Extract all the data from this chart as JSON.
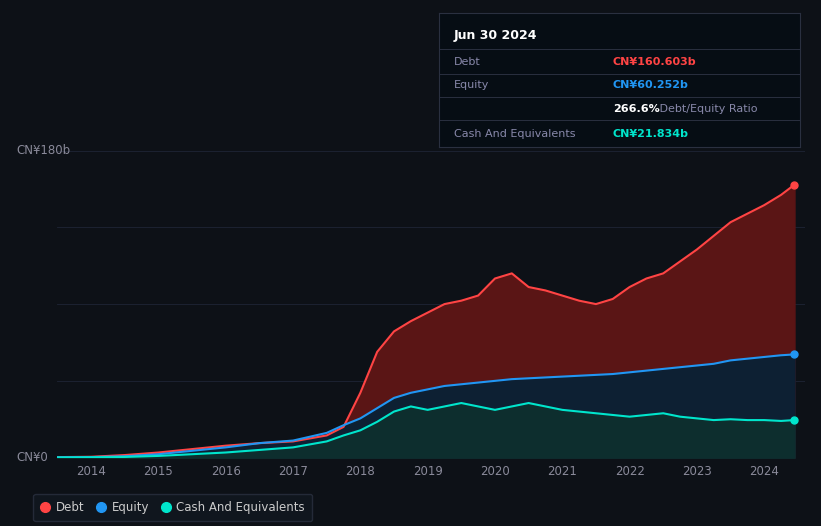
{
  "background_color": "#0d1117",
  "plot_bg_color": "#0d1117",
  "title": "Jun 30 2024",
  "ylabel_180": "CN¥180b",
  "ylabel_0": "CN¥0",
  "x_ticks": [
    2014,
    2015,
    2016,
    2017,
    2018,
    2019,
    2020,
    2021,
    2022,
    2023,
    2024
  ],
  "debt_color": "#ff4444",
  "equity_color": "#2196f3",
  "cash_color": "#00e5cc",
  "debt_fill_color": "#5a1515",
  "equity_fill_color": "#0d2033",
  "cash_fill_color": "#0d2e2e",
  "grid_color": "#1e2535",
  "debt_label": "Debt",
  "equity_label": "Equity",
  "cash_label": "Cash And Equivalents",
  "debt_value": "CN¥160.603b",
  "equity_value": "CN¥60.252b",
  "ratio_value": "266.6%",
  "cash_value": "CN¥21.834b",
  "years": [
    2013.5,
    2014.0,
    2014.5,
    2015.0,
    2015.5,
    2016.0,
    2016.5,
    2017.0,
    2017.5,
    2017.75,
    2018.0,
    2018.25,
    2018.5,
    2018.75,
    2019.0,
    2019.25,
    2019.5,
    2019.75,
    2020.0,
    2020.25,
    2020.5,
    2020.75,
    2021.0,
    2021.25,
    2021.5,
    2021.75,
    2022.0,
    2022.25,
    2022.5,
    2022.75,
    2023.0,
    2023.25,
    2023.5,
    2023.75,
    2024.0,
    2024.25,
    2024.45
  ],
  "debt": [
    0.3,
    0.5,
    1.5,
    3.0,
    5.0,
    7.0,
    8.5,
    9.5,
    13.0,
    18.0,
    38.0,
    62.0,
    74.0,
    80.0,
    85.0,
    90.0,
    92.0,
    95.0,
    105.0,
    108.0,
    100.0,
    98.0,
    95.0,
    92.0,
    90.0,
    93.0,
    100.0,
    105.0,
    108.0,
    115.0,
    122.0,
    130.0,
    138.0,
    143.0,
    148.0,
    154.0,
    160.0
  ],
  "equity": [
    0.2,
    0.3,
    0.8,
    2.0,
    4.0,
    6.0,
    8.5,
    10.0,
    14.5,
    19.0,
    23.0,
    29.0,
    35.0,
    38.0,
    40.0,
    42.0,
    43.0,
    44.0,
    45.0,
    46.0,
    46.5,
    47.0,
    47.5,
    48.0,
    48.5,
    49.0,
    50.0,
    51.0,
    52.0,
    53.0,
    54.0,
    55.0,
    57.0,
    58.0,
    59.0,
    60.0,
    60.5
  ],
  "cash": [
    0.1,
    0.2,
    0.4,
    1.0,
    2.0,
    3.0,
    4.5,
    6.0,
    9.5,
    13.0,
    16.0,
    21.0,
    27.0,
    30.0,
    28.0,
    30.0,
    32.0,
    30.0,
    28.0,
    30.0,
    32.0,
    30.0,
    28.0,
    27.0,
    26.0,
    25.0,
    24.0,
    25.0,
    26.0,
    24.0,
    23.0,
    22.0,
    22.5,
    22.0,
    22.0,
    21.5,
    22.0
  ]
}
